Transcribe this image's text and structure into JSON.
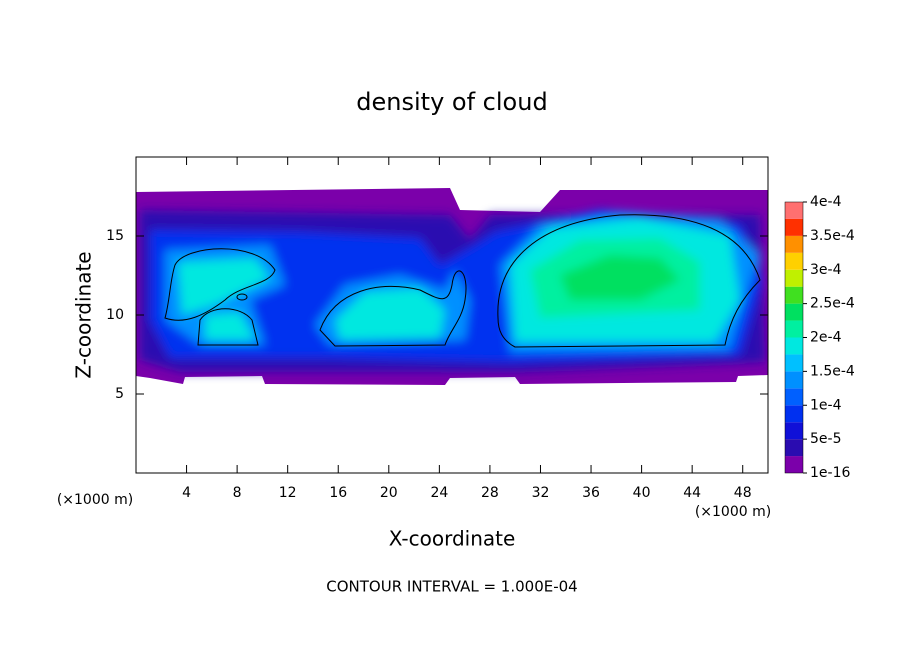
{
  "chart_data": {
    "type": "contour",
    "title": "density of cloud",
    "x_label": "X-coordinate",
    "y_label": "Z-coordinate",
    "x_unit": "(×1000 m)",
    "annotation": "CONTOUR INTERVAL = 1.000E-04",
    "xlim": [
      0,
      50
    ],
    "xticks": [
      4,
      8,
      12,
      16,
      20,
      24,
      28,
      32,
      36,
      40,
      44,
      48
    ],
    "ylim": [
      0,
      20
    ],
    "yticks": [
      5,
      10,
      15
    ],
    "colorbar": {
      "clim": [
        1e-16,
        0.0004
      ],
      "ticks": [
        {
          "value": 1e-16,
          "label": "1e-16"
        },
        {
          "value": 5e-05,
          "label": "5e-5"
        },
        {
          "value": 0.0001,
          "label": "1e-4"
        },
        {
          "value": 0.00015,
          "label": "1.5e-4"
        },
        {
          "value": 0.0002,
          "label": "2e-4"
        },
        {
          "value": 0.00025,
          "label": "2.5e-4"
        },
        {
          "value": 0.0003,
          "label": "3e-4"
        },
        {
          "value": 0.00035,
          "label": "3.5e-4"
        },
        {
          "value": 0.0004,
          "label": "4e-4"
        }
      ],
      "colors": [
        "#7b00aa",
        "#2a0cb0",
        "#1010d8",
        "#0030f0",
        "#0060ff",
        "#0090ff",
        "#00c0ff",
        "#00e8e0",
        "#00f0a0",
        "#00e060",
        "#40e020",
        "#c0f000",
        "#ffd000",
        "#ff9000",
        "#ff3000",
        "#ff7070"
      ]
    }
  }
}
